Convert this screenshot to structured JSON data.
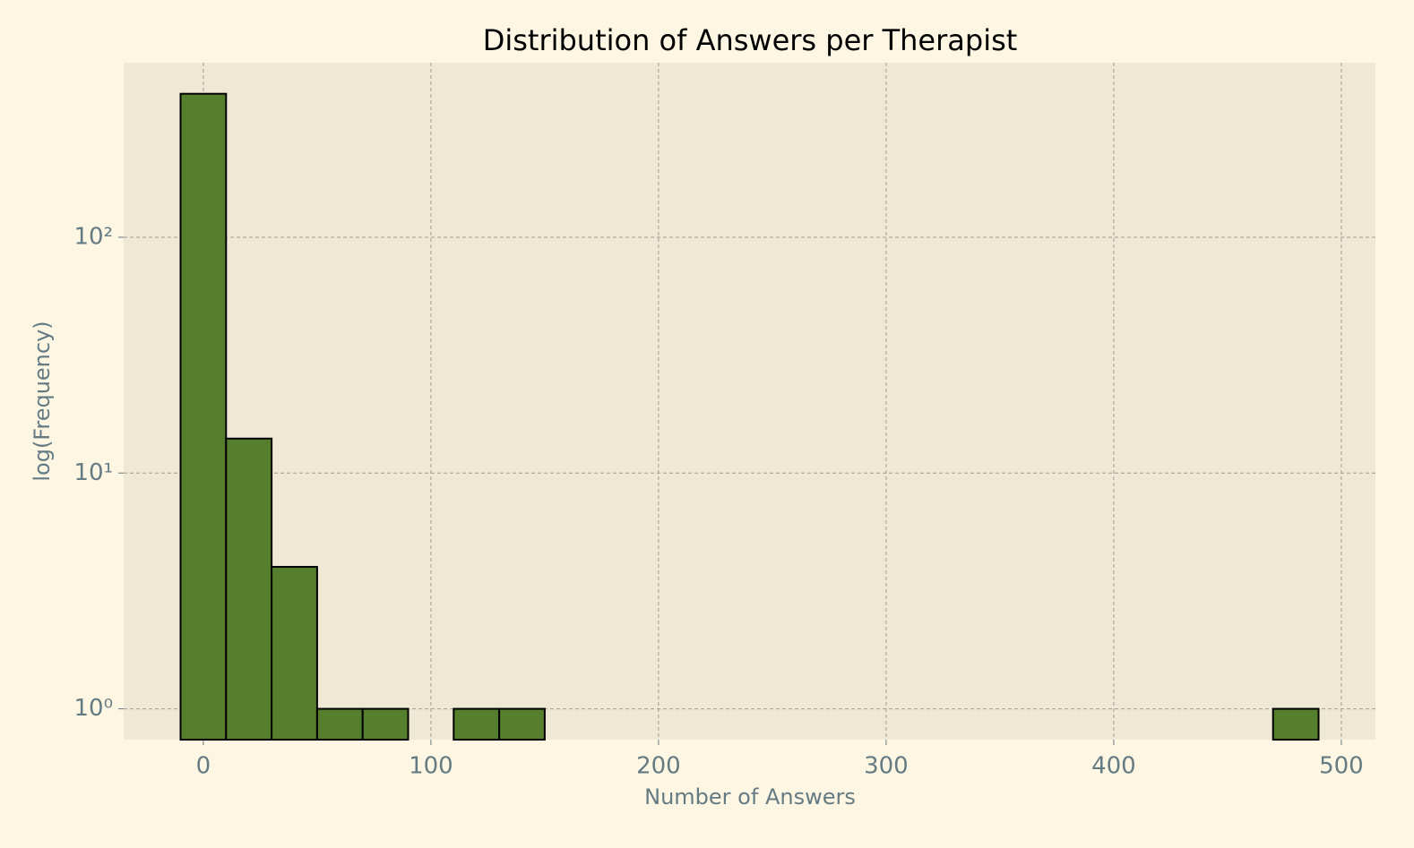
{
  "chart_data": {
    "type": "histogram",
    "title": "Distribution of Answers per Therapist",
    "x_label": "Number of Answers",
    "y_label": "log(Frequency)",
    "bins": [
      -10,
      10,
      30,
      50,
      70,
      90,
      110,
      130,
      150,
      170,
      190,
      210,
      230,
      250,
      270,
      290,
      310,
      330,
      350,
      370,
      390,
      410,
      430,
      450,
      470,
      490
    ],
    "counts": [
      406,
      14,
      4,
      1,
      1,
      0,
      1,
      1,
      0,
      0,
      0,
      0,
      0,
      0,
      0,
      0,
      0,
      0,
      0,
      0,
      0,
      0,
      0,
      0,
      1
    ],
    "color": "#557f2d",
    "edge_color": "#000000",
    "xlim": [
      -35,
      515
    ],
    "xticks": [
      0,
      100,
      200,
      300,
      400,
      500
    ],
    "ylim": [
      0.74,
      550
    ],
    "y_scale": "log",
    "yticks": [
      {
        "value": 1,
        "label": "10⁰"
      },
      {
        "value": 10,
        "label": "10¹"
      },
      {
        "value": 100,
        "label": "10²"
      }
    ],
    "grid": true
  }
}
